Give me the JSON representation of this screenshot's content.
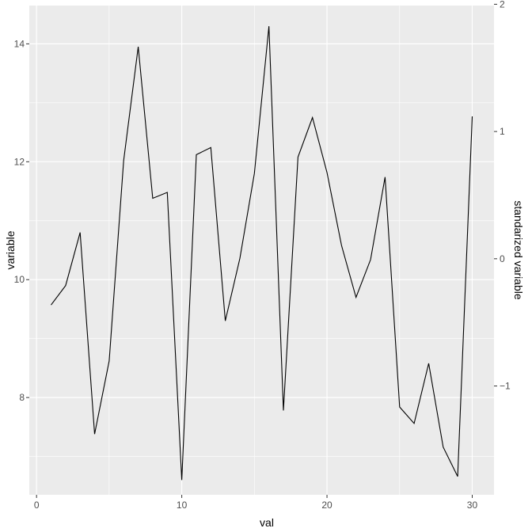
{
  "chart_data": {
    "type": "line",
    "xlabel": "val",
    "ylabel": "variable",
    "y2label": "standarized variable",
    "xlim": [
      -0.5,
      31.5
    ],
    "ylim": [
      6.35,
      14.65
    ],
    "y2lim": [
      -1.855,
      1.99
    ],
    "xticks": [
      0,
      10,
      20,
      30
    ],
    "yticks": [
      8,
      10,
      12,
      14
    ],
    "y2ticks": [
      -1,
      0,
      1,
      2
    ],
    "grid": true,
    "colors": {
      "panel": "#ebebeb",
      "grid": "#ffffff",
      "line": "#000000",
      "tick_text": "#4d4d4d"
    },
    "series": [
      {
        "x": [
          1,
          2,
          3,
          4,
          5,
          6,
          7,
          8,
          9,
          10,
          11,
          12,
          13,
          14,
          15,
          16,
          17,
          18,
          19,
          20,
          21,
          22,
          23,
          24,
          25,
          26,
          27,
          28,
          29,
          30
        ],
        "y": [
          9.57,
          9.9,
          10.8,
          7.38,
          8.62,
          12.02,
          13.95,
          11.38,
          11.48,
          6.6,
          12.12,
          12.24,
          9.3,
          10.36,
          11.8,
          14.3,
          7.78,
          12.08,
          12.75,
          11.82,
          10.58,
          9.7,
          10.34,
          11.74,
          7.84,
          7.56,
          8.58,
          7.16,
          6.66,
          12.77
        ]
      }
    ]
  }
}
